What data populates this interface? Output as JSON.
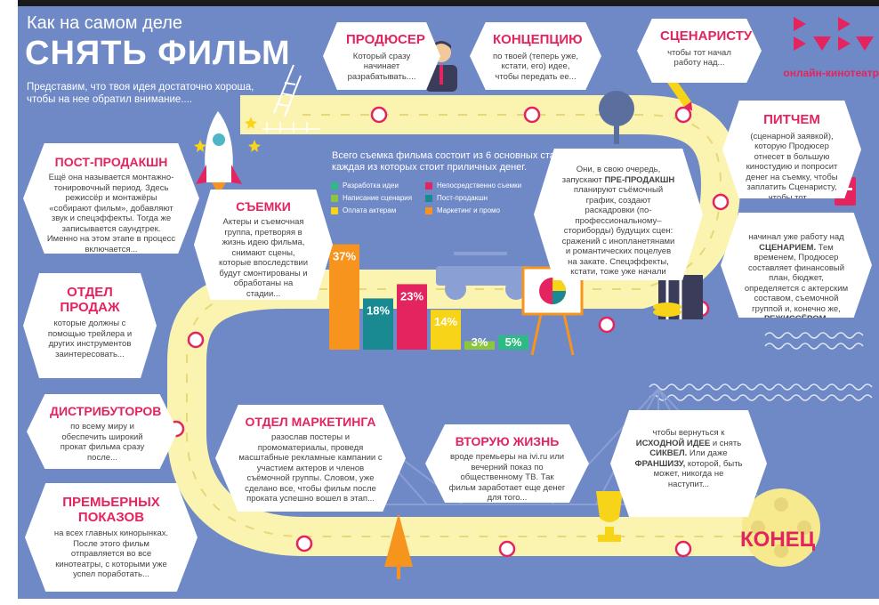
{
  "header": {
    "title_small": "Как на самом деле",
    "title_big": "СНЯТЬ ФИЛЬМ",
    "intro": "Представим, что твоя идея достаточно хороша, чтобы на нее обратил внимание...."
  },
  "brand": {
    "name": "онлайн-кинотеатр",
    "color": "#e4245f"
  },
  "colors": {
    "background": "#6e89c6",
    "road": "#fbf3b0",
    "accent": "#e4245f"
  },
  "stages": {
    "producer": {
      "title": "ПРОДЮСЕР",
      "body": "Который сразу начинает разрабатывать...."
    },
    "concept": {
      "title": "КОНЦЕПЦИЮ",
      "body": "по твоей (теперь уже, кстати, его) идее, чтобы передать ее..."
    },
    "screenwriter": {
      "title": "СЦЕНАРИСТУ",
      "body": "чтобы тот начал работу над..."
    },
    "pitch": {
      "title": "ПИТЧЕМ",
      "body": "(сценарной заявкой), которую Продюсер отнесет в большую киностудию и попросит денег на съемку, чтобы заплатить Сценаристу, чтобы тот...."
    },
    "scenario": {
      "pre": "начинал уже работу над",
      "em1": "СЦЕНАРИЕМ.",
      "body": "Тем временем, Продюсер составляет финансовый план, бюджет, определяется с актерским составом, съемочной группой и, конечно же,",
      "em2": "РЕЖИССЁРОМ."
    },
    "preproduction": {
      "pre": "Они, в свою очередь, запускают",
      "em": "ПРЕ-ПРОДАКШН",
      "body": "планируют съёмочный график, создают раскадровки (по-профессиональному–сториборды) будущих сцен: сражений с инопланетянами и романтических поцелуев на закате. Спецэффекты, кстати, тоже уже начали готовить."
    },
    "filming": {
      "title": "СЪЕМКИ",
      "body": "Актеры и съемочная группа, претворяя в жизнь идею фильма, снимают сцены, которые впоследствии будут смонтированы и обработаны на стадии..."
    },
    "postproduction": {
      "title": "ПОСТ-ПРОДАКШН",
      "body": "Ещё она называется монтажно-тонировочный период. Здесь режиссёр и монтажёры «собирают фильм», добавляют звук и спецэффекты. Тогда же записывается саундтрек. Именно на этом этапе в процесс включается..."
    },
    "sales": {
      "title": "ОТДЕЛ ПРОДАЖ",
      "body": "которые должны с помощью трейлера и других инструментов заинтересовать..."
    },
    "distributors": {
      "title": "ДИСТРИБУТОРОВ",
      "body": "по всему миру и обеспечить широкий прокат фильма сразу после..."
    },
    "premieres": {
      "title": "ПРЕМЬЕРНЫХ ПОКАЗОВ",
      "body": "на всех главных кинорынках. После этого фильм отправляется во все кинотеатры, с которыми уже успел поработать..."
    },
    "marketing": {
      "title": "ОТДЕЛ МАРКЕТИНГА",
      "body": "разослав постеры и промоматериалы, проведя масштабные рекламные кампании с участием актеров и членов съёмочной группы. Словом, уже сделано все, чтобы фильм после проката успешно вошел в этап..."
    },
    "second_life": {
      "title": "ВТОРУЮ ЖИЗНЬ",
      "body": "вроде премьеры на ivi.ru или вечерний показ по общественному ТВ. Так фильм заработает еще денег для того..."
    },
    "idea": {
      "pre": "чтобы вернуться к",
      "em1": "ИСХОДНОЙ ИДЕЕ",
      "mid1": "и снять",
      "em2": "СИКВЕЛ.",
      "mid2": "Или даже",
      "em3": "ФРАНШИЗУ,",
      "post": "которой, быть может, никогда не наступит..."
    },
    "end": {
      "title": "КОНЕЦ"
    }
  },
  "chart_data": {
    "type": "bar",
    "title": "Всего съемка фильма состоит из 6 основных стадий, каждая из которых стоит приличных денег.",
    "categories": [
      "Маркетинг и промо",
      "Пост-продакшн",
      "Непосредственно съемки",
      "Оплата актерам",
      "Написание сценария",
      "Разработка идеи"
    ],
    "values": [
      37,
      18,
      23,
      14,
      3,
      5
    ],
    "labels": [
      "37%",
      "18%",
      "23%",
      "14%",
      "3%",
      "5%"
    ],
    "colors": [
      "#f7941d",
      "#1a8a92",
      "#e4245f",
      "#f7d417",
      "#8cc63f",
      "#2dbb85"
    ],
    "legend": [
      {
        "name": "Разработка идеи",
        "color": "#2dbb85"
      },
      {
        "name": "Написание сценария",
        "color": "#8cc63f"
      },
      {
        "name": "Оплата актерам",
        "color": "#f7d417"
      },
      {
        "name": "Непосредственно съемки",
        "color": "#e4245f"
      },
      {
        "name": "Пост-продакшн",
        "color": "#1a8a92"
      },
      {
        "name": "Маркетинг и промо",
        "color": "#f7941d"
      }
    ],
    "ylim": [
      0,
      40
    ]
  }
}
